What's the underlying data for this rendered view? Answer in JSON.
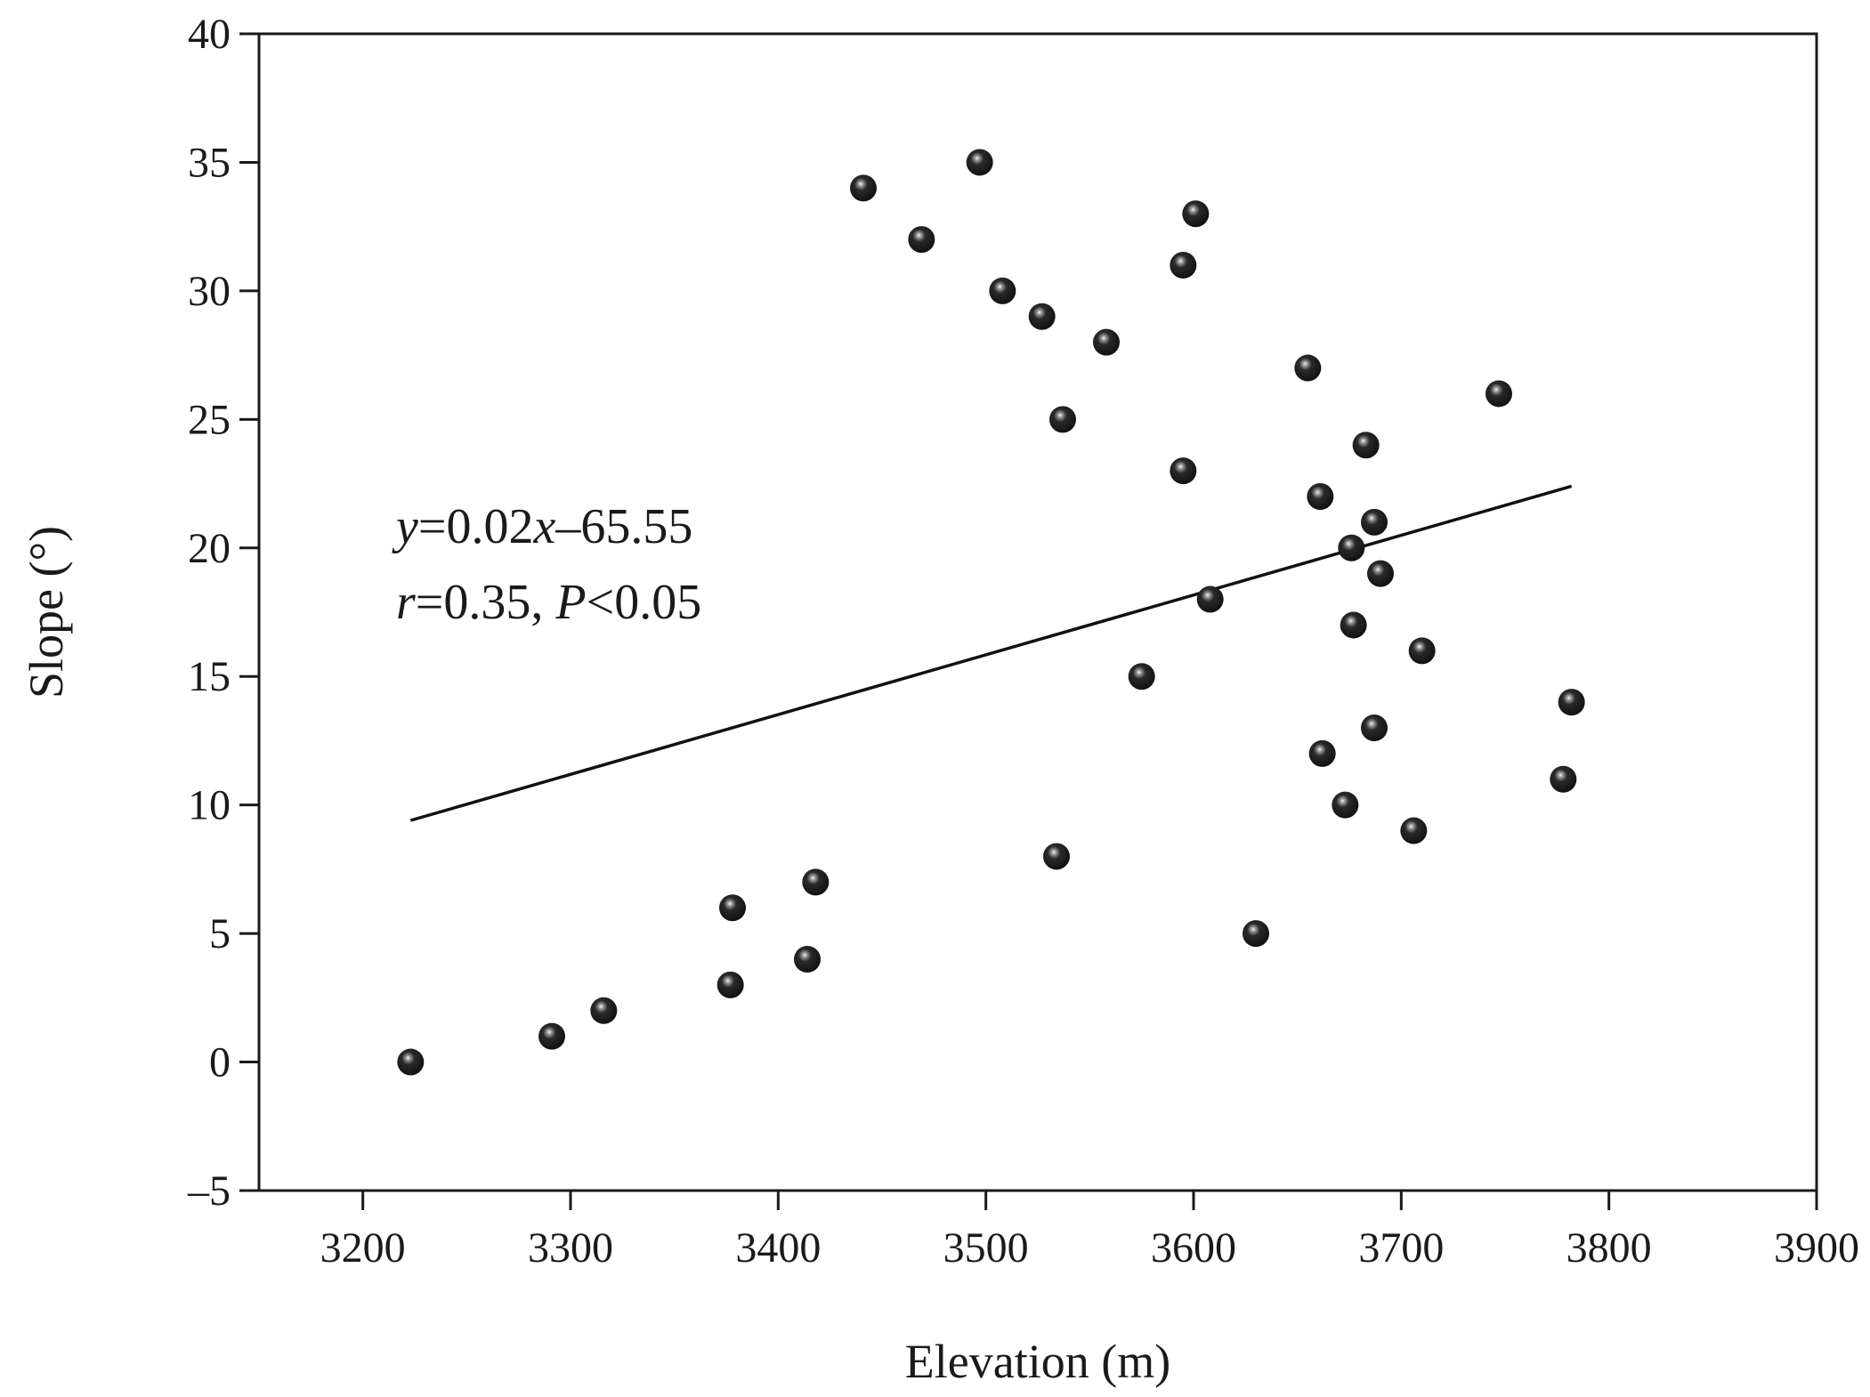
{
  "chart_data": {
    "type": "scatter",
    "xlabel": "Elevation (m)",
    "ylabel": "Slope (°)",
    "xlim": [
      3150,
      3900
    ],
    "ylim": [
      -5,
      40
    ],
    "xticks": [
      3200,
      3300,
      3400,
      3500,
      3600,
      3700,
      3800,
      3900
    ],
    "yticks": [
      -5,
      0,
      5,
      10,
      15,
      20,
      25,
      30,
      35,
      40
    ],
    "x_tick_labels": [
      "3200",
      "3300",
      "3400",
      "3500",
      "3600",
      "3700",
      "3800",
      "3900"
    ],
    "y_tick_labels": [
      "–5",
      "0",
      "5",
      "10",
      "15",
      "20",
      "25",
      "30",
      "35",
      "40"
    ],
    "grid": false,
    "marker_color": "#111111",
    "line_color": "#111111",
    "points": [
      {
        "x": 3223,
        "y": 0
      },
      {
        "x": 3291,
        "y": 1
      },
      {
        "x": 3316,
        "y": 2
      },
      {
        "x": 3377,
        "y": 3
      },
      {
        "x": 3378,
        "y": 6
      },
      {
        "x": 3414,
        "y": 4
      },
      {
        "x": 3418,
        "y": 7
      },
      {
        "x": 3441,
        "y": 34
      },
      {
        "x": 3469,
        "y": 32
      },
      {
        "x": 3497,
        "y": 35
      },
      {
        "x": 3508,
        "y": 30
      },
      {
        "x": 3527,
        "y": 29
      },
      {
        "x": 3534,
        "y": 8
      },
      {
        "x": 3537,
        "y": 25
      },
      {
        "x": 3558,
        "y": 28
      },
      {
        "x": 3575,
        "y": 15
      },
      {
        "x": 3595,
        "y": 31
      },
      {
        "x": 3595,
        "y": 23
      },
      {
        "x": 3601,
        "y": 33
      },
      {
        "x": 3608,
        "y": 18
      },
      {
        "x": 3630,
        "y": 5
      },
      {
        "x": 3655,
        "y": 27
      },
      {
        "x": 3661,
        "y": 22
      },
      {
        "x": 3662,
        "y": 12
      },
      {
        "x": 3673,
        "y": 10
      },
      {
        "x": 3676,
        "y": 20
      },
      {
        "x": 3677,
        "y": 17
      },
      {
        "x": 3683,
        "y": 24
      },
      {
        "x": 3687,
        "y": 21
      },
      {
        "x": 3687,
        "y": 13
      },
      {
        "x": 3690,
        "y": 19
      },
      {
        "x": 3706,
        "y": 9
      },
      {
        "x": 3710,
        "y": 16
      },
      {
        "x": 3747,
        "y": 26
      },
      {
        "x": 3778,
        "y": 11
      },
      {
        "x": 3782,
        "y": 14
      }
    ],
    "trend_line": {
      "x": [
        3223,
        3782
      ],
      "y": [
        9.4,
        22.4
      ]
    },
    "annotation": {
      "line1": {
        "y_var": "y",
        "eq_mid": "=0.02",
        "x_var": "x",
        "eq_end": "–65.55"
      },
      "line2": {
        "r_var": "r",
        "r_text": "=0.35, ",
        "p_var": "P",
        "p_text": "<0.05"
      }
    }
  }
}
